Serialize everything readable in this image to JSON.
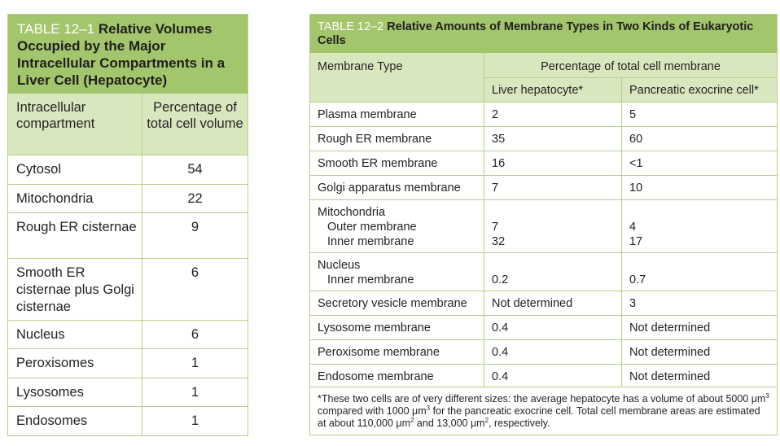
{
  "table1": {
    "number": "TABLE 12–1",
    "title": "Relative Volumes Occupied by the Major Intracellular Compartments in a Liver Cell (Hepatocyte)",
    "col1": "Intracellular compartment",
    "col2": "Percentage of total cell volume",
    "rows": [
      {
        "name": "Cytosol",
        "value": "54"
      },
      {
        "name": "Mitochondria",
        "value": "22"
      },
      {
        "name": "Rough ER cisternae",
        "value": "9"
      },
      {
        "name": "Smooth ER cisternae plus Golgi cisternae",
        "value": "6"
      },
      {
        "name": "Nucleus",
        "value": "6"
      },
      {
        "name": "Peroxisomes",
        "value": "1"
      },
      {
        "name": "Lysosomes",
        "value": "1"
      },
      {
        "name": "Endosomes",
        "value": "1"
      }
    ]
  },
  "table2": {
    "number": "TABLE 12–2",
    "title": "Relative Amounts of Membrane Types in Two Kinds of Eukaryotic Cells",
    "col_type": "Membrane Type",
    "col_group": "Percentage of total cell membrane",
    "col_liver": "Liver hepatocyte*",
    "col_pancreas": "Pancreatic exocrine cell*",
    "rows": [
      {
        "type": "Plasma membrane",
        "liver": "2",
        "pancreas": "5"
      },
      {
        "type": "Rough ER membrane",
        "liver": "35",
        "pancreas": "60"
      },
      {
        "type": "Smooth ER membrane",
        "liver": "16",
        "pancreas": "<1"
      },
      {
        "type": "Golgi apparatus membrane",
        "liver": "7",
        "pancreas": "10"
      },
      {
        "type": "Mitochondria",
        "sub1": "Outer membrane",
        "sub2": "Inner membrane",
        "liver1": "7",
        "liver2": "32",
        "pancreas1": "4",
        "pancreas2": "17"
      },
      {
        "type": "Nucleus",
        "sub1": "Inner membrane",
        "liver1": "0.2",
        "pancreas1": "0.7"
      },
      {
        "type": "Secretory vesicle membrane",
        "liver": "Not determined",
        "pancreas": "3"
      },
      {
        "type": "Lysosome membrane",
        "liver": "0.4",
        "pancreas": "Not determined"
      },
      {
        "type": "Peroxisome membrane",
        "liver": "0.4",
        "pancreas": "Not determined"
      },
      {
        "type": "Endosome membrane",
        "liver": "0.4",
        "pancreas": "Not determined"
      }
    ],
    "footnote": {
      "a": "*These two cells are of very different sizes: the average hepatocyte has a volume of about 5000 μm",
      "b": " compared with 1000 μm",
      "c": " for the pancreatic exocrine cell. Total cell membrane areas are estimated at about 110,000 μm",
      "d": " and 13,000 μm",
      "e": ", respectively.",
      "exp3": "3",
      "exp2": "2"
    }
  }
}
